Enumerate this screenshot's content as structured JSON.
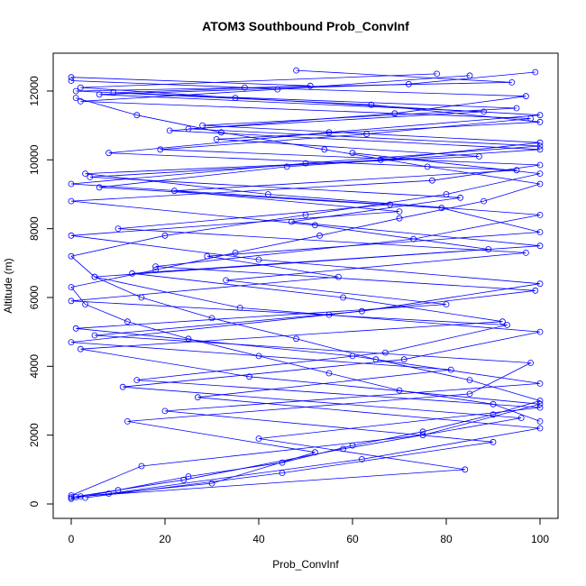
{
  "chart_data": {
    "type": "scatter",
    "title": "ATOM3 Southbound Prob_ConvInf",
    "xlabel": "Prob_ConvInf",
    "ylabel": "Altitude (m)",
    "xlim": [
      0,
      100
    ],
    "ylim": [
      0,
      12600
    ],
    "x_ticks": [
      0,
      20,
      40,
      60,
      80,
      100
    ],
    "y_ticks": [
      0,
      2000,
      4000,
      6000,
      8000,
      10000,
      12000
    ],
    "grid": false,
    "legend": "none",
    "style": {
      "mode": "points-and-lines",
      "marker": "open-circle"
    },
    "colors": {
      "series": "#0000ff"
    },
    "series": [
      {
        "x": [
          1,
          30,
          52,
          12,
          85,
          98,
          5,
          62,
          100,
          40,
          0,
          70,
          22,
          95,
          8,
          55,
          100,
          35,
          2,
          78
        ],
        "y": [
          200,
          600,
          1500,
          2400,
          3200,
          4100,
          4900,
          5600,
          6400,
          7100,
          7800,
          8500,
          9100,
          9700,
          10200,
          10800,
          11300,
          11800,
          12100,
          12500
        ]
      },
      {
        "x": [
          3,
          45,
          90,
          20,
          100,
          60,
          1,
          80,
          33,
          97,
          10,
          68,
          0,
          50,
          100,
          25,
          88,
          6,
          72,
          99
        ],
        "y": [
          180,
          900,
          1800,
          2700,
          3500,
          4300,
          5100,
          5800,
          6500,
          7300,
          8000,
          8700,
          9300,
          9900,
          10400,
          10900,
          11400,
          11900,
          12200,
          12550
        ]
      },
      {
        "x": [
          0,
          15,
          75,
          100,
          38,
          2,
          92,
          58,
          13,
          100,
          47,
          83,
          4,
          66,
          100,
          28,
          95,
          9,
          51,
          0
        ],
        "y": [
          250,
          1100,
          2000,
          2900,
          3700,
          4500,
          5300,
          6000,
          6700,
          7500,
          8200,
          8900,
          9500,
          10000,
          10500,
          11000,
          11500,
          11950,
          12150,
          12400
        ]
      },
      {
        "x": [
          8,
          62,
          100,
          27,
          81,
          0,
          55,
          99,
          18,
          73,
          100,
          42,
          3,
          87,
          31,
          100,
          64,
          1,
          94,
          48
        ],
        "y": [
          300,
          1300,
          2200,
          3100,
          3900,
          4700,
          5500,
          6200,
          6900,
          7700,
          8400,
          9000,
          9600,
          10100,
          10600,
          11100,
          11600,
          12000,
          12250,
          12600
        ]
      },
      {
        "x": [
          0,
          24,
          58,
          96,
          11,
          71,
          100,
          36,
          5,
          89,
          52,
          0,
          77,
          100,
          19,
          63,
          98,
          2,
          44,
          85
        ],
        "y": [
          190,
          700,
          1600,
          2500,
          3400,
          4200,
          5000,
          5700,
          6600,
          7400,
          8100,
          8800,
          9400,
          9850,
          10300,
          10750,
          11200,
          11700,
          12050,
          12450
        ]
      },
      {
        "x": [
          2,
          84,
          40,
          100,
          14,
          67,
          93,
          0,
          57,
          29,
          100,
          79,
          6,
          46,
          100,
          21,
          69,
          97,
          37,
          0
        ],
        "y": [
          220,
          1000,
          1900,
          2800,
          3600,
          4400,
          5200,
          5900,
          6600,
          7200,
          7900,
          8600,
          9200,
          9800,
          10300,
          10850,
          11350,
          11850,
          12100,
          12300
        ]
      },
      {
        "x": [
          0,
          10,
          25,
          45,
          60,
          75,
          90,
          100,
          85,
          65,
          48,
          30,
          15,
          5,
          0,
          20,
          50,
          80,
          100,
          60
        ],
        "y": [
          150,
          400,
          800,
          1200,
          1700,
          2100,
          2600,
          3000,
          3600,
          4200,
          4800,
          5400,
          6000,
          6600,
          7200,
          7800,
          8400,
          9000,
          9600,
          10200
        ]
      },
      {
        "x": [
          100,
          90,
          70,
          55,
          40,
          25,
          12,
          3,
          0,
          18,
          35,
          53,
          70,
          88,
          100,
          76,
          54,
          32,
          14,
          1
        ],
        "y": [
          2400,
          2900,
          3300,
          3800,
          4300,
          4800,
          5300,
          5800,
          6300,
          6800,
          7300,
          7800,
          8300,
          8800,
          9300,
          9800,
          10300,
          10800,
          11300,
          11800
        ]
      }
    ]
  }
}
